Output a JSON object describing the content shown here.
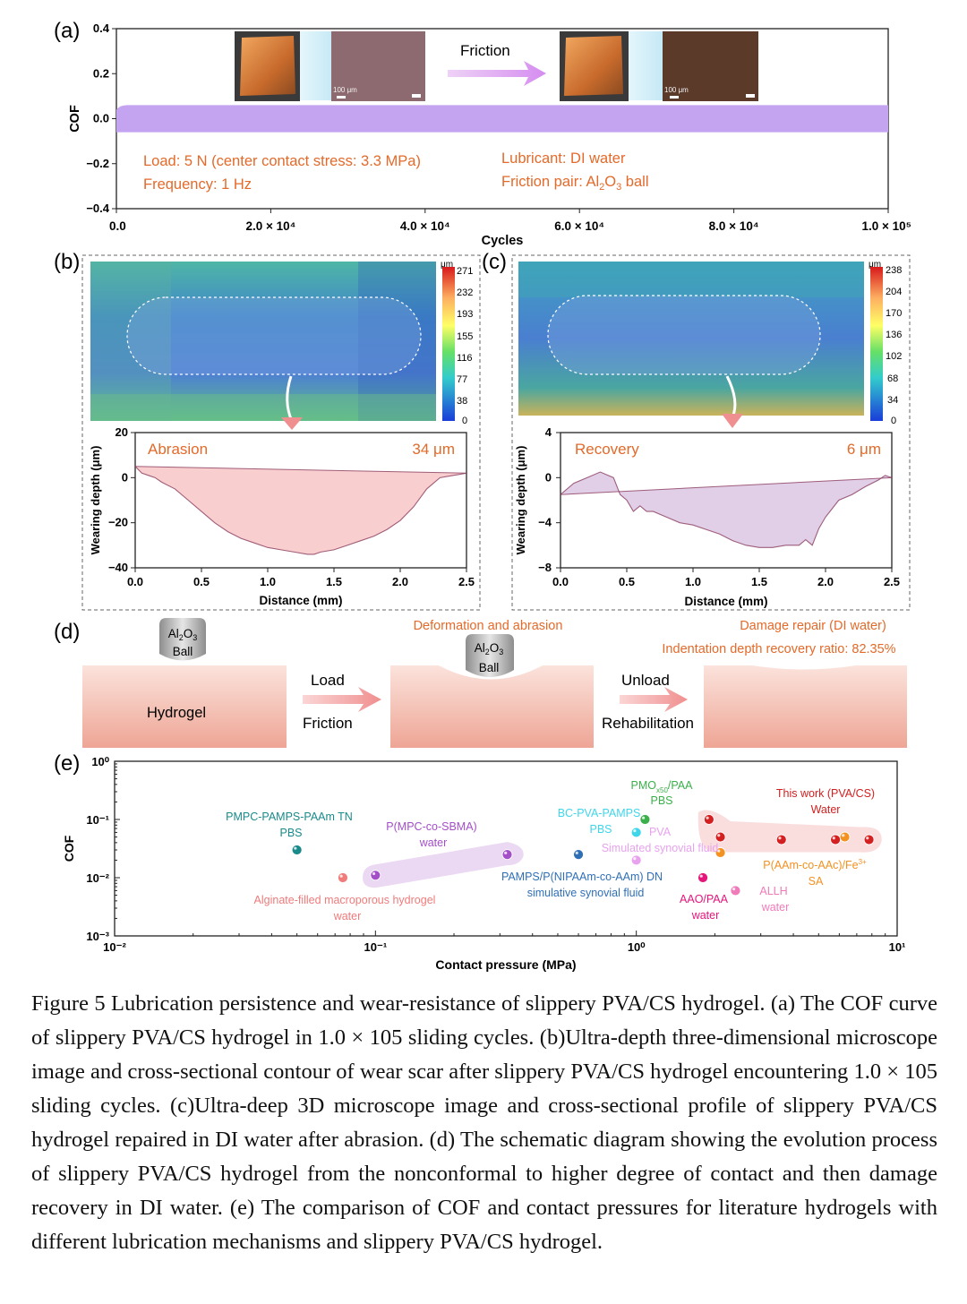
{
  "figure": {
    "panel_labels": [
      "(a)",
      "(b)",
      "(c)",
      "(d)",
      "(e)"
    ],
    "caption": "Figure 5 Lubrication persistence and wear-resistance of slippery PVA/CS hydrogel. (a) The COF curve of slippery PVA/CS hydrogel in 1.0 × 105 sliding cycles. (b)Ultra-depth three-dimensional microscope image and cross-sectional contour of wear scar after slippery PVA/CS hydrogel encountering 1.0 × 105 sliding cycles. (c)Ultra-deep 3D microscope image and cross-sectional profile of slippery PVA/CS hydrogel repaired in DI water after abrasion. (d) The schematic diagram showing the evolution process of slippery PVA/CS hydrogel from the nonconformal to higher degree of contact and then damage recovery in DI water. (e) The comparison of COF and contact pressures for literature hydrogels with different lubrication mechanisms and slippery PVA/CS hydrogel."
  },
  "panel_a": {
    "friction_label": "Friction",
    "scale_bar_1": "100 μm",
    "scale_bar_2": "100 μm",
    "cond_load": "Load: 5 N (center contact stress: 3.3 MPa)",
    "cond_freq": "Frequency: 1 Hz",
    "cond_lub": "Lubricant: DI water",
    "cond_pair_prefix": "Friction pair: Al",
    "cond_pair_sub1": "2",
    "cond_pair_mid": "O",
    "cond_pair_sub2": "3",
    "cond_pair_suffix": " ball"
  },
  "panel_b": {
    "unit": "μm",
    "colorbar_ticks": [
      "271",
      "232",
      "193",
      "155",
      "116",
      "77",
      "38",
      "0"
    ],
    "profile_label": "Abrasion",
    "depth_label": "34 μm"
  },
  "panel_c": {
    "unit": "μm",
    "colorbar_ticks": [
      "238",
      "204",
      "170",
      "136",
      "102",
      "68",
      "34",
      "0"
    ],
    "profile_label": "Recovery",
    "depth_label": "6 μm"
  },
  "panel_d": {
    "ball_line1_a": "Al",
    "ball_line1_sub1": "2",
    "ball_line1_b": "O",
    "ball_line1_sub2": "3",
    "ball_line2": "Ball",
    "hydrogel": "Hydrogel",
    "load": "Load",
    "friction": "Friction",
    "deformation": "Deformation and abrasion",
    "unload": "Unload",
    "rehab": "Rehabilitation",
    "damage_repair": "Damage repair (DI water)",
    "recovery_ratio": "Indentation depth recovery ratio: 82.35%"
  },
  "chart_data": [
    {
      "type": "line",
      "panel": "(a)",
      "xlabel": "Cycles",
      "ylabel": "COF",
      "xlim": [
        0,
        100000
      ],
      "ylim": [
        -0.4,
        0.4
      ],
      "x_ticks": [
        "0.0",
        "2.0 × 10⁴",
        "4.0 × 10⁴",
        "6.0 × 10⁴",
        "8.0 × 10⁴",
        "1.0 × 10⁵"
      ],
      "y_ticks": [
        "0.4",
        "0.2",
        "0.0",
        "−0.2",
        "−0.4"
      ],
      "band": {
        "x": [
          0,
          100000
        ],
        "upper": 0.06,
        "lower": -0.06,
        "color": "#c4a4f0"
      }
    },
    {
      "type": "area",
      "panel": "(b)",
      "xlabel": "Distance (mm)",
      "ylabel": "Wearing depth (μm)",
      "xlim": [
        0,
        2.5
      ],
      "ylim": [
        -40,
        20
      ],
      "x_ticks": [
        "0.0",
        "0.5",
        "1.0",
        "1.5",
        "2.0",
        "2.5"
      ],
      "y_ticks": [
        "20",
        "0",
        "−20",
        "−40"
      ],
      "color": "#f2a6a6",
      "baseline": {
        "x": [
          0,
          2.5
        ],
        "y": [
          5,
          2
        ]
      },
      "profile": {
        "x": [
          0,
          0.05,
          0.1,
          0.15,
          0.2,
          0.3,
          0.4,
          0.5,
          0.6,
          0.7,
          0.8,
          0.9,
          1.0,
          1.1,
          1.2,
          1.3,
          1.35,
          1.4,
          1.5,
          1.6,
          1.7,
          1.8,
          1.9,
          2.0,
          2.1,
          2.2,
          2.3,
          2.4,
          2.5
        ],
        "y": [
          5,
          2,
          1,
          0,
          -2,
          -5,
          -10,
          -15,
          -20,
          -24,
          -27,
          -29,
          -31,
          -32,
          -33,
          -34,
          -34,
          -33,
          -32,
          -30,
          -28,
          -26,
          -23,
          -19,
          -13,
          -5,
          0,
          1,
          2
        ]
      }
    },
    {
      "type": "area",
      "panel": "(c)",
      "xlabel": "Distance (mm)",
      "ylabel": "Wearing depth (μm)",
      "xlim": [
        0,
        2.5
      ],
      "ylim": [
        -8,
        4
      ],
      "x_ticks": [
        "0.0",
        "0.5",
        "1.0",
        "1.5",
        "2.0",
        "2.5"
      ],
      "y_ticks": [
        "4",
        "0",
        "−4",
        "−8"
      ],
      "color": "#c9a6d4",
      "baseline": {
        "x": [
          0,
          2.5
        ],
        "y": [
          -1.5,
          0
        ]
      },
      "profile": {
        "x": [
          0,
          0.1,
          0.2,
          0.3,
          0.4,
          0.45,
          0.5,
          0.55,
          0.6,
          0.65,
          0.7,
          0.8,
          0.9,
          1.0,
          1.1,
          1.2,
          1.3,
          1.4,
          1.5,
          1.6,
          1.7,
          1.8,
          1.85,
          1.9,
          1.95,
          2.0,
          2.1,
          2.2,
          2.3,
          2.4,
          2.45,
          2.5
        ],
        "y": [
          -1.5,
          -0.5,
          0,
          0.5,
          0,
          -1.5,
          -2,
          -3,
          -2.5,
          -3,
          -3,
          -3.5,
          -4,
          -4.2,
          -4.6,
          -5,
          -5.6,
          -6,
          -6.2,
          -6.2,
          -6,
          -6,
          -5.5,
          -6,
          -4.5,
          -3.5,
          -2,
          -1.5,
          -0.8,
          -0.2,
          0.2,
          0
        ]
      }
    },
    {
      "type": "scatter",
      "panel": "(e)",
      "xlabel": "Contact pressure (MPa)",
      "ylabel": "COF",
      "xscale": "log",
      "yscale": "log",
      "xlim": [
        0.01,
        10
      ],
      "ylim": [
        0.001,
        1
      ],
      "x_ticks": [
        "10⁻²",
        "10⁻¹",
        "10⁰",
        "10¹"
      ],
      "y_ticks": [
        "10⁰",
        "10⁻¹",
        "10⁻²",
        "10⁻³"
      ],
      "series": [
        {
          "name": "PMPC-PAMPS-PAAm TN",
          "note": "PBS",
          "color": "#1a8a8a",
          "points": [
            [
              0.05,
              0.03
            ]
          ]
        },
        {
          "name": "Alginate-filled macroporous hydrogel",
          "note": "water",
          "color": "#ef7b7b",
          "points": [
            [
              0.075,
              0.01
            ]
          ]
        },
        {
          "name": "P(MPC-co-SBMA)",
          "note": "water",
          "color": "#a34fc7",
          "points": [
            [
              0.1,
              0.011
            ],
            [
              0.32,
              0.025
            ]
          ]
        },
        {
          "name": "PMO",
          "note": "PBS",
          "color": "#3bb04a",
          "points": [
            [
              1.08,
              0.1
            ]
          ]
        },
        {
          "name": "BC-PVA-PAMPS",
          "note": "PBS",
          "color": "#3fd6ea",
          "points": [
            [
              1.0,
              0.06
            ]
          ]
        },
        {
          "name": "PVA",
          "note": "Simulated synovial fluid",
          "color": "#e8a3ee",
          "points": [
            [
              1.0,
              0.02
            ]
          ]
        },
        {
          "name": "PAMPS/P(NIPAAm-co-AAm) DN",
          "note": "simulative synovial fluid",
          "color": "#2f6fb6",
          "points": [
            [
              0.6,
              0.025
            ]
          ]
        },
        {
          "name": "AAO/PAA",
          "note": "water",
          "color": "#e4157b",
          "points": [
            [
              1.8,
              0.01
            ]
          ]
        },
        {
          "name": "ALLH",
          "note": "water",
          "color": "#f07bb8",
          "points": [
            [
              2.4,
              0.006
            ]
          ]
        },
        {
          "name": "P(AAm-co-AAc)/Fe³⁺",
          "note": "SA",
          "color": "#f39121",
          "points": [
            [
              2.1,
              0.027
            ],
            [
              6.3,
              0.05
            ]
          ]
        },
        {
          "name": "This work (PVA/CS)",
          "note": "Water",
          "color": "#d42020",
          "points": [
            [
              1.9,
              0.1
            ],
            [
              2.1,
              0.05
            ],
            [
              3.6,
              0.045
            ],
            [
              5.8,
              0.045
            ],
            [
              7.8,
              0.045
            ]
          ]
        }
      ],
      "labels": {
        "pmpc_1": "PMPC-PAMPS-PAAm TN",
        "pmpc_2": "PBS",
        "alg_1": "Alginate-filled macroporous hydrogel",
        "alg_2": "water",
        "mpc_1": "P(MPC-co-SBMA)",
        "mpc_2": "water",
        "pmo_1": "PMO",
        "pmo_sub": "x50",
        "pmo_2": "/PAA",
        "pmo_3": "PBS",
        "bc_1": "BC-PVA-PAMPS",
        "bc_2": "PBS",
        "pva_1": "PVA",
        "pva_2": "Simulated synovial fluid",
        "pamps_1": "PAMPS/P(NIPAAm-co-AAm) DN",
        "pamps_2": "simulative synovial fluid",
        "aao_1": "AAO/PAA",
        "aao_2": "water",
        "allh_1": "ALLH",
        "allh_2": "water",
        "paam_1": "P(AAm-co-AAc)/Fe",
        "paam_sup": "3+",
        "paam_2": "SA",
        "work_1": "This work (PVA/CS)",
        "work_2": "Water"
      }
    }
  ]
}
